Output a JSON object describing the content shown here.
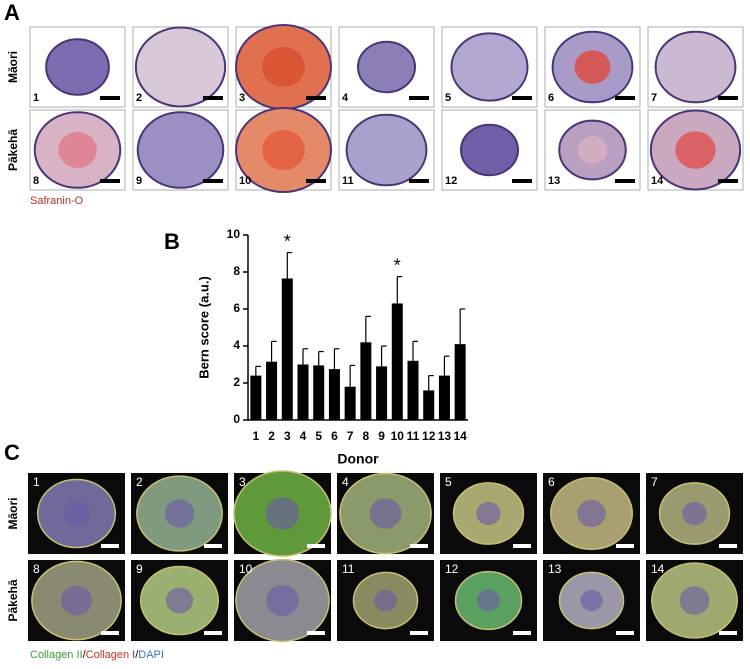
{
  "panel_a": {
    "label": "A",
    "stain": "Safranin-O",
    "rows": [
      {
        "label": "Māori",
        "items": [
          "1",
          "2",
          "3",
          "4",
          "5",
          "6",
          "7"
        ]
      },
      {
        "label": "Pākehā",
        "items": [
          "8",
          "9",
          "10",
          "11",
          "12",
          "13",
          "14"
        ]
      }
    ]
  },
  "chart_data": {
    "type": "bar",
    "panel_label": "B",
    "xlabel": "Donor",
    "ylabel": "Bern score  (a.u.)",
    "categories": [
      "1",
      "2",
      "3",
      "4",
      "5",
      "6",
      "7",
      "8",
      "9",
      "10",
      "11",
      "12",
      "13",
      "14"
    ],
    "values": [
      2.4,
      3.15,
      7.65,
      3.0,
      2.95,
      2.75,
      1.8,
      4.2,
      2.9,
      6.3,
      3.2,
      1.6,
      2.4,
      4.1
    ],
    "errors": [
      0.5,
      1.1,
      1.4,
      0.85,
      0.75,
      1.1,
      1.15,
      1.4,
      1.1,
      1.45,
      1.05,
      0.8,
      1.05,
      1.9
    ],
    "annotations": [
      {
        "text": "*",
        "category": "3"
      },
      {
        "text": "*",
        "category": "10"
      }
    ],
    "color": "#000000",
    "ylim": [
      0,
      10
    ],
    "yticks": [
      0,
      2,
      4,
      6,
      8,
      10
    ]
  },
  "panel_c": {
    "label": "C",
    "rows": [
      {
        "label": "Māori",
        "items": [
          "1",
          "2",
          "3",
          "4",
          "5",
          "6",
          "7"
        ]
      },
      {
        "label": "Pākehā",
        "items": [
          "8",
          "9",
          "10",
          "11",
          "12",
          "13",
          "14"
        ]
      }
    ],
    "legend": [
      {
        "text": "Collagen II",
        "color": "#3f9a3a"
      },
      {
        "text": "Collagen I",
        "color": "#c0302a"
      },
      {
        "text": "DAPI",
        "color": "#3a6fc0"
      }
    ]
  }
}
